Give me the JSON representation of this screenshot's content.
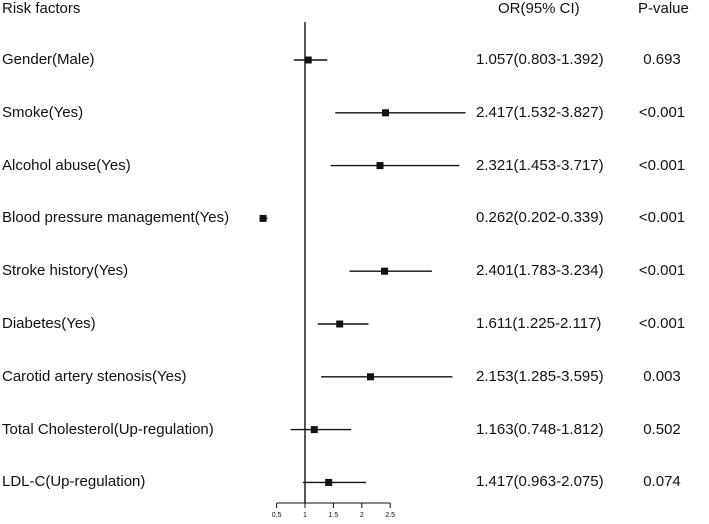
{
  "headers": {
    "risk_factors": "Risk factors",
    "or_ci": "OR(95% CI)",
    "p_value": "P-value"
  },
  "chart_data": {
    "type": "forest",
    "reference_line": 1,
    "xlim": [
      0.5,
      2.5
    ],
    "xticks": [
      "0.5",
      "1",
      "1.5",
      "2",
      "2.5"
    ],
    "rows": [
      {
        "label": "Gender(Male)",
        "or": 1.057,
        "lo": 0.803,
        "hi": 1.392,
        "or_text": "1.057(0.803-1.392)",
        "p": "0.693"
      },
      {
        "label": "Smoke(Yes)",
        "or": 2.417,
        "lo": 1.532,
        "hi": 3.827,
        "or_text": "2.417(1.532-3.827)",
        "p": "<0.001"
      },
      {
        "label": "Alcohol abuse(Yes)",
        "or": 2.321,
        "lo": 1.453,
        "hi": 3.717,
        "or_text": "2.321(1.453-3.717)",
        "p": "<0.001"
      },
      {
        "label": "Blood pressure management(Yes)",
        "or": 0.262,
        "lo": 0.202,
        "hi": 0.339,
        "or_text": "0.262(0.202-0.339)",
        "p": "<0.001"
      },
      {
        "label": "Stroke history(Yes)",
        "or": 2.401,
        "lo": 1.783,
        "hi": 3.234,
        "or_text": "2.401(1.783-3.234)",
        "p": "<0.001"
      },
      {
        "label": "Diabetes(Yes)",
        "or": 1.611,
        "lo": 1.225,
        "hi": 2.117,
        "or_text": "1.611(1.225-2.117)",
        "p": "<0.001"
      },
      {
        "label": "Carotid artery stenosis(Yes)",
        "or": 2.153,
        "lo": 1.285,
        "hi": 3.595,
        "or_text": "2.153(1.285-3.595)",
        "p": "0.003"
      },
      {
        "label": "Total Cholesterol(Up-regulation)",
        "or": 1.163,
        "lo": 0.748,
        "hi": 1.812,
        "or_text": "1.163(0.748-1.812)",
        "p": "0.502"
      },
      {
        "label": "LDL-C(Up-regulation)",
        "or": 1.417,
        "lo": 0.963,
        "hi": 2.075,
        "or_text": "1.417(0.963-2.075)",
        "p": "0.074"
      }
    ]
  }
}
